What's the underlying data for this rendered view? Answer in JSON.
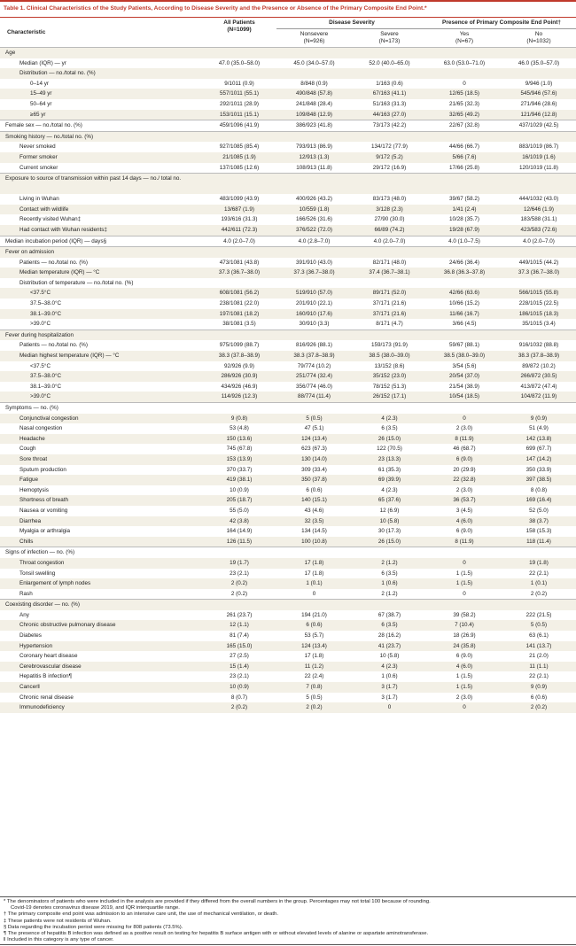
{
  "title": {
    "label": "Table 1.",
    "text": "Clinical Characteristics of the Study Patients, According to Disease Severity and the Presence or Absence of the Primary Composite End Point.*"
  },
  "header": {
    "characteristic": "Characteristic",
    "all_patients": "All Patients",
    "all_n": "(N=1099)",
    "severity_group": "Disease Severity",
    "endpoint_group": "Presence of Primary Composite End Point†",
    "nonsevere": "Nonsevere",
    "nonsevere_n": "(N=926)",
    "severe": "Severe",
    "severe_n": "(N=173)",
    "yes": "Yes",
    "yes_n": "(N=67)",
    "no": "No",
    "no_n": "(N=1032)"
  },
  "rows": [
    {
      "label": "Age",
      "level": 0,
      "sec": true,
      "values": []
    },
    {
      "label": "Median (IQR) — yr",
      "level": 1,
      "values": [
        "47.0 (35.0–58.0)",
        "45.0 (34.0–57.0)",
        "52.0 (40.0–65.0)",
        "63.0 (53.0–71.0)",
        "46.0 (35.0–57.0)"
      ]
    },
    {
      "label": "Distribution — no./total no. (%)",
      "level": 1,
      "values": []
    },
    {
      "label": "0–14 yr",
      "level": 2,
      "values": [
        "9/1011 (0.9)",
        "8/848 (0.9)",
        "1/163 (0.6)",
        "0",
        "9/946 (1.0)"
      ]
    },
    {
      "label": "15–49 yr",
      "level": 2,
      "values": [
        "557/1011 (55.1)",
        "490/848 (57.8)",
        "67/163 (41.1)",
        "12/65 (18.5)",
        "545/946 (57.6)"
      ]
    },
    {
      "label": "50–64 yr",
      "level": 2,
      "values": [
        "292/1011 (28.9)",
        "241/848 (28.4)",
        "51/163 (31.3)",
        "21/65 (32.3)",
        "271/946 (28.6)"
      ]
    },
    {
      "label": "≥65 yr",
      "level": 2,
      "values": [
        "153/1011 (15.1)",
        "109/848 (12.9)",
        "44/163 (27.0)",
        "32/65 (49.2)",
        "121/946 (12.8)"
      ]
    },
    {
      "label": "Female sex — no./total no. (%)",
      "level": 0,
      "sec": true,
      "values": [
        "459/1096 (41.9)",
        "386/923 (41.8)",
        "73/173 (42.2)",
        "22/67 (32.8)",
        "437/1029 (42.5)"
      ]
    },
    {
      "label": "Smoking history — no./total no. (%)",
      "level": 0,
      "sec": true,
      "values": []
    },
    {
      "label": "Never smoked",
      "level": 1,
      "values": [
        "927/1085 (85.4)",
        "793/913 (86.9)",
        "134/172 (77.9)",
        "44/66 (66.7)",
        "883/1019 (86.7)"
      ]
    },
    {
      "label": "Former smoker",
      "level": 1,
      "values": [
        "21/1085 (1.9)",
        "12/913 (1.3)",
        "9/172 (5.2)",
        "5/66 (7.6)",
        "16/1019 (1.6)"
      ]
    },
    {
      "label": "Current smoker",
      "level": 1,
      "values": [
        "137/1085 (12.6)",
        "108/913 (11.8)",
        "29/172 (16.9)",
        "17/66 (25.8)",
        "120/1019 (11.8)"
      ]
    },
    {
      "label": "Exposure to source of transmission within past 14 days — no./ total no.",
      "level": 0,
      "sec": true,
      "wrap": true,
      "values": []
    },
    {
      "label": "Living in Wuhan",
      "level": 1,
      "values": [
        "483/1099 (43.9)",
        "400/926 (43.2)",
        "83/173 (48.0)",
        "39/67 (58.2)",
        "444/1032 (43.0)"
      ]
    },
    {
      "label": "Contact with wildlife",
      "level": 1,
      "values": [
        "13/687 (1.9)",
        "10/559 (1.8)",
        "3/128 (2.3)",
        "1/41 (2.4)",
        "12/646 (1.9)"
      ]
    },
    {
      "label": "Recently visited Wuhan‡",
      "level": 1,
      "values": [
        "193/616 (31.3)",
        "166/526 (31.6)",
        "27/90 (30.0)",
        "10/28 (35.7)",
        "183/588 (31.1)"
      ]
    },
    {
      "label": "Had contact with Wuhan residents‡",
      "level": 1,
      "values": [
        "442/611 (72.3)",
        "376/522 (72.0)",
        "66/89 (74.2)",
        "19/28 (67.9)",
        "423/583 (72.6)"
      ]
    },
    {
      "label": "Median incubation period (IQR) — days§",
      "level": 0,
      "sec": true,
      "values": [
        "4.0 (2.0–7.0)",
        "4.0 (2.8–7.0)",
        "4.0 (2.0–7.0)",
        "4.0 (1.0–7.5)",
        "4.0 (2.0–7.0)"
      ]
    },
    {
      "label": "Fever on admission",
      "level": 0,
      "sec": true,
      "values": []
    },
    {
      "label": "Patients — no./total no. (%)",
      "level": 1,
      "values": [
        "473/1081 (43.8)",
        "391/910 (43.0)",
        "82/171 (48.0)",
        "24/66 (36.4)",
        "449/1015 (44.2)"
      ]
    },
    {
      "label": "Median temperature (IQR) — °C",
      "level": 1,
      "values": [
        "37.3 (36.7–38.0)",
        "37.3 (36.7–38.0)",
        "37.4 (36.7–38.1)",
        "36.8 (36.3–37.8)",
        "37.3 (36.7–38.0)"
      ]
    },
    {
      "label": "Distribution of temperature — no./total no. (%)",
      "level": 1,
      "values": []
    },
    {
      "label": "<37.5°C",
      "level": 2,
      "values": [
        "608/1081 (56.2)",
        "519/910 (57.0)",
        "89/171 (52.0)",
        "42/66 (63.6)",
        "566/1015 (55.8)"
      ]
    },
    {
      "label": "37.5–38.0°C",
      "level": 2,
      "values": [
        "238/1081 (22.0)",
        "201/910 (22.1)",
        "37/171 (21.6)",
        "10/66 (15.2)",
        "228/1015 (22.5)"
      ]
    },
    {
      "label": "38.1–39.0°C",
      "level": 2,
      "values": [
        "197/1081 (18.2)",
        "160/910 (17.6)",
        "37/171 (21.6)",
        "11/66 (16.7)",
        "186/1015 (18.3)"
      ]
    },
    {
      "label": ">39.0°C",
      "level": 2,
      "values": [
        "38/1081 (3.5)",
        "30/910 (3.3)",
        "8/171 (4.7)",
        "3/66 (4.5)",
        "35/1015 (3.4)"
      ]
    },
    {
      "label": "Fever during hospitalization",
      "level": 0,
      "sec": true,
      "values": []
    },
    {
      "label": "Patients — no./total no. (%)",
      "level": 1,
      "values": [
        "975/1099 (88.7)",
        "816/926 (88.1)",
        "159/173 (91.9)",
        "59/67 (88.1)",
        "916/1032 (88.8)"
      ]
    },
    {
      "label": "Median highest temperature (IQR) — °C",
      "level": 1,
      "values": [
        "38.3 (37.8–38.9)",
        "38.3 (37.8–38.9)",
        "38.5 (38.0–39.0)",
        "38.5 (38.0–39.0)",
        "38.3 (37.8–38.9)"
      ]
    },
    {
      "label": "<37.5°C",
      "level": 2,
      "values": [
        "92/926 (9.9)",
        "79/774 (10.2)",
        "13/152 (8.6)",
        "3/54 (5.6)",
        "89/872 (10.2)"
      ]
    },
    {
      "label": "37.5–38.0°C",
      "level": 2,
      "values": [
        "286/926 (30.9)",
        "251/774 (32.4)",
        "35/152 (23.0)",
        "20/54 (37.0)",
        "266/872 (30.5)"
      ]
    },
    {
      "label": "38.1–39.0°C",
      "level": 2,
      "values": [
        "434/926 (46.9)",
        "356/774 (46.0)",
        "78/152 (51.3)",
        "21/54 (38.9)",
        "413/872 (47.4)"
      ]
    },
    {
      "label": ">39.0°C",
      "level": 2,
      "values": [
        "114/926 (12.3)",
        "88/774 (11.4)",
        "26/152 (17.1)",
        "10/54 (18.5)",
        "104/872 (11.9)"
      ]
    },
    {
      "label": "Symptoms — no. (%)",
      "level": 0,
      "sec": true,
      "values": []
    },
    {
      "label": "Conjunctival congestion",
      "level": 1,
      "values": [
        "9 (0.8)",
        "5 (0.5)",
        "4 (2.3)",
        "0",
        "9 (0.9)"
      ]
    },
    {
      "label": "Nasal congestion",
      "level": 1,
      "values": [
        "53 (4.8)",
        "47 (5.1)",
        "6 (3.5)",
        "2 (3.0)",
        "51 (4.9)"
      ]
    },
    {
      "label": "Headache",
      "level": 1,
      "values": [
        "150 (13.6)",
        "124 (13.4)",
        "26 (15.0)",
        "8 (11.9)",
        "142 (13.8)"
      ]
    },
    {
      "label": "Cough",
      "level": 1,
      "values": [
        "745 (67.8)",
        "623 (67.3)",
        "122 (70.5)",
        "46 (68.7)",
        "699 (67.7)"
      ]
    },
    {
      "label": "Sore throat",
      "level": 1,
      "values": [
        "153 (13.9)",
        "130 (14.0)",
        "23 (13.3)",
        "6 (9.0)",
        "147 (14.2)"
      ]
    },
    {
      "label": "Sputum production",
      "level": 1,
      "values": [
        "370 (33.7)",
        "309 (33.4)",
        "61 (35.3)",
        "20 (29.9)",
        "350 (33.9)"
      ]
    },
    {
      "label": "Fatigue",
      "level": 1,
      "values": [
        "419 (38.1)",
        "350 (37.8)",
        "69 (39.9)",
        "22 (32.8)",
        "397 (38.5)"
      ]
    },
    {
      "label": "Hemoptysis",
      "level": 1,
      "values": [
        "10 (0.9)",
        "6 (0.6)",
        "4 (2.3)",
        "2 (3.0)",
        "8 (0.8)"
      ]
    },
    {
      "label": "Shortness of breath",
      "level": 1,
      "values": [
        "205 (18.7)",
        "140 (15.1)",
        "65 (37.6)",
        "36 (53.7)",
        "169 (16.4)"
      ]
    },
    {
      "label": "Nausea or vomiting",
      "level": 1,
      "values": [
        "55 (5.0)",
        "43 (4.6)",
        "12 (6.9)",
        "3 (4.5)",
        "52 (5.0)"
      ]
    },
    {
      "label": "Diarrhea",
      "level": 1,
      "values": [
        "42 (3.8)",
        "32 (3.5)",
        "10 (5.8)",
        "4 (6.0)",
        "38 (3.7)"
      ]
    },
    {
      "label": "Myalgia or arthralgia",
      "level": 1,
      "values": [
        "164 (14.9)",
        "134 (14.5)",
        "30 (17.3)",
        "6 (9.0)",
        "158 (15.3)"
      ]
    },
    {
      "label": "Chills",
      "level": 1,
      "values": [
        "126 (11.5)",
        "100 (10.8)",
        "26 (15.0)",
        "8 (11.9)",
        "118 (11.4)"
      ]
    },
    {
      "label": "Signs of infection — no. (%)",
      "level": 0,
      "sec": true,
      "values": []
    },
    {
      "label": "Throat congestion",
      "level": 1,
      "values": [
        "19 (1.7)",
        "17 (1.8)",
        "2 (1.2)",
        "0",
        "19 (1.8)"
      ]
    },
    {
      "label": "Tonsil swelling",
      "level": 1,
      "values": [
        "23 (2.1)",
        "17 (1.8)",
        "6 (3.5)",
        "1 (1.5)",
        "22 (2.1)"
      ]
    },
    {
      "label": "Enlargement of lymph nodes",
      "level": 1,
      "values": [
        "2 (0.2)",
        "1 (0.1)",
        "1 (0.6)",
        "1 (1.5)",
        "1 (0.1)"
      ]
    },
    {
      "label": "Rash",
      "level": 1,
      "values": [
        "2 (0.2)",
        "0",
        "2 (1.2)",
        "0",
        "2 (0.2)"
      ]
    },
    {
      "label": "Coexisting disorder — no. (%)",
      "level": 0,
      "sec": true,
      "values": []
    },
    {
      "label": "Any",
      "level": 1,
      "values": [
        "261 (23.7)",
        "194 (21.0)",
        "67 (38.7)",
        "39 (58.2)",
        "222 (21.5)"
      ]
    },
    {
      "label": "Chronic obstructive pulmonary disease",
      "level": 1,
      "values": [
        "12 (1.1)",
        "6 (0.6)",
        "6 (3.5)",
        "7 (10.4)",
        "5 (0.5)"
      ]
    },
    {
      "label": "Diabetes",
      "level": 1,
      "values": [
        "81 (7.4)",
        "53 (5.7)",
        "28 (16.2)",
        "18 (26.9)",
        "63 (6.1)"
      ]
    },
    {
      "label": "Hypertension",
      "level": 1,
      "values": [
        "165 (15.0)",
        "124 (13.4)",
        "41 (23.7)",
        "24 (35.8)",
        "141 (13.7)"
      ]
    },
    {
      "label": "Coronary heart disease",
      "level": 1,
      "values": [
        "27 (2.5)",
        "17 (1.8)",
        "10 (5.8)",
        "6 (9.0)",
        "21 (2.0)"
      ]
    },
    {
      "label": "Cerebrovascular disease",
      "level": 1,
      "values": [
        "15 (1.4)",
        "11 (1.2)",
        "4 (2.3)",
        "4 (6.0)",
        "11 (1.1)"
      ]
    },
    {
      "label": "Hepatitis B infection¶",
      "level": 1,
      "values": [
        "23 (2.1)",
        "22 (2.4)",
        "1 (0.6)",
        "1 (1.5)",
        "22 (2.1)"
      ]
    },
    {
      "label": "Cancer‖",
      "level": 1,
      "values": [
        "10 (0.9)",
        "7 (0.8)",
        "3 (1.7)",
        "1 (1.5)",
        "9 (0.9)"
      ]
    },
    {
      "label": "Chronic renal disease",
      "level": 1,
      "values": [
        "8 (0.7)",
        "5 (0.5)",
        "3 (1.7)",
        "2 (3.0)",
        "6 (0.6)"
      ]
    },
    {
      "label": "Immunodeficiency",
      "level": 1,
      "values": [
        "2 (0.2)",
        "2 (0.2)",
        "0",
        "0",
        "2 (0.2)"
      ]
    }
  ],
  "footnotes": [
    {
      "text": "* The denominators of patients who were included in the analysis are provided if they differed from the overall numbers in the group. Percentages may not total 100 because of rounding.",
      "indent": false
    },
    {
      "text": "Covid-19 denotes coronavirus disease 2019, and IQR interquartile range.",
      "indent": true
    },
    {
      "text": "† The primary composite end point was admission to an intensive care unit, the use of mechanical ventilation, or death.",
      "indent": false
    },
    {
      "text": "‡ These patients were not residents of Wuhan.",
      "indent": false
    },
    {
      "text": "§ Data regarding the incubation period were missing for 808 patients (73.5%).",
      "indent": false
    },
    {
      "text": "¶ The presence of hepatitis B infection was defined as a positive result on testing for hepatitis B surface antigen with or without elevated levels of alanine or aspartate aminotransferase.",
      "indent": false
    },
    {
      "text": "‖ Included in this category is any type of cancer.",
      "indent": false
    }
  ]
}
